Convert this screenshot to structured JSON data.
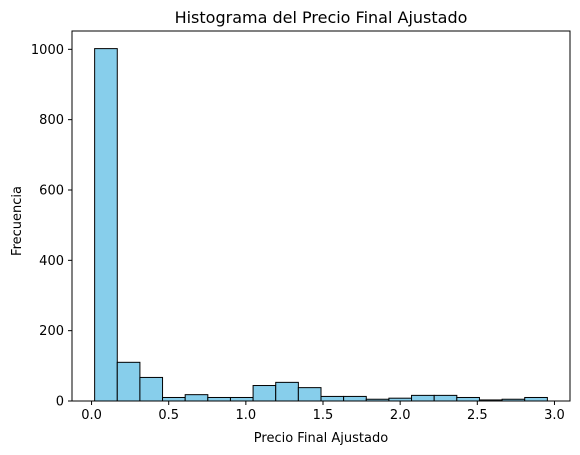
{
  "chart_data": {
    "type": "bar",
    "title": "Histograma del Precio Final Ajustado",
    "xlabel": "Precio Final Ajustado",
    "ylabel": "Frecuencia",
    "bin_edges": [
      0.02,
      0.1667,
      0.3134,
      0.4601,
      0.6068,
      0.7535,
      0.9002,
      1.0469,
      1.1936,
      1.3403,
      1.487,
      1.6337,
      1.7804,
      1.9271,
      2.0738,
      2.2205,
      2.3672,
      2.5139,
      2.6606,
      2.8073,
      2.954
    ],
    "values": [
      1002,
      110,
      67,
      10,
      18,
      10,
      10,
      44,
      53,
      38,
      13,
      13,
      5,
      8,
      16,
      16,
      10,
      3,
      5,
      10
    ],
    "xlim": [
      -0.1267,
      3.1007
    ],
    "ylim": [
      0,
      1052.1
    ],
    "xticks": [
      0.0,
      0.5,
      1.0,
      1.5,
      2.0,
      2.5,
      3.0
    ],
    "xtick_labels": [
      "0.0",
      "0.5",
      "1.0",
      "1.5",
      "2.0",
      "2.5",
      "3.0"
    ],
    "yticks": [
      0,
      200,
      400,
      600,
      800,
      1000
    ],
    "ytick_labels": [
      "0",
      "200",
      "400",
      "600",
      "800",
      "1000"
    ],
    "bar_color": "#87ceeb",
    "edge_color": "#000000",
    "grid": false,
    "legend": "none"
  }
}
